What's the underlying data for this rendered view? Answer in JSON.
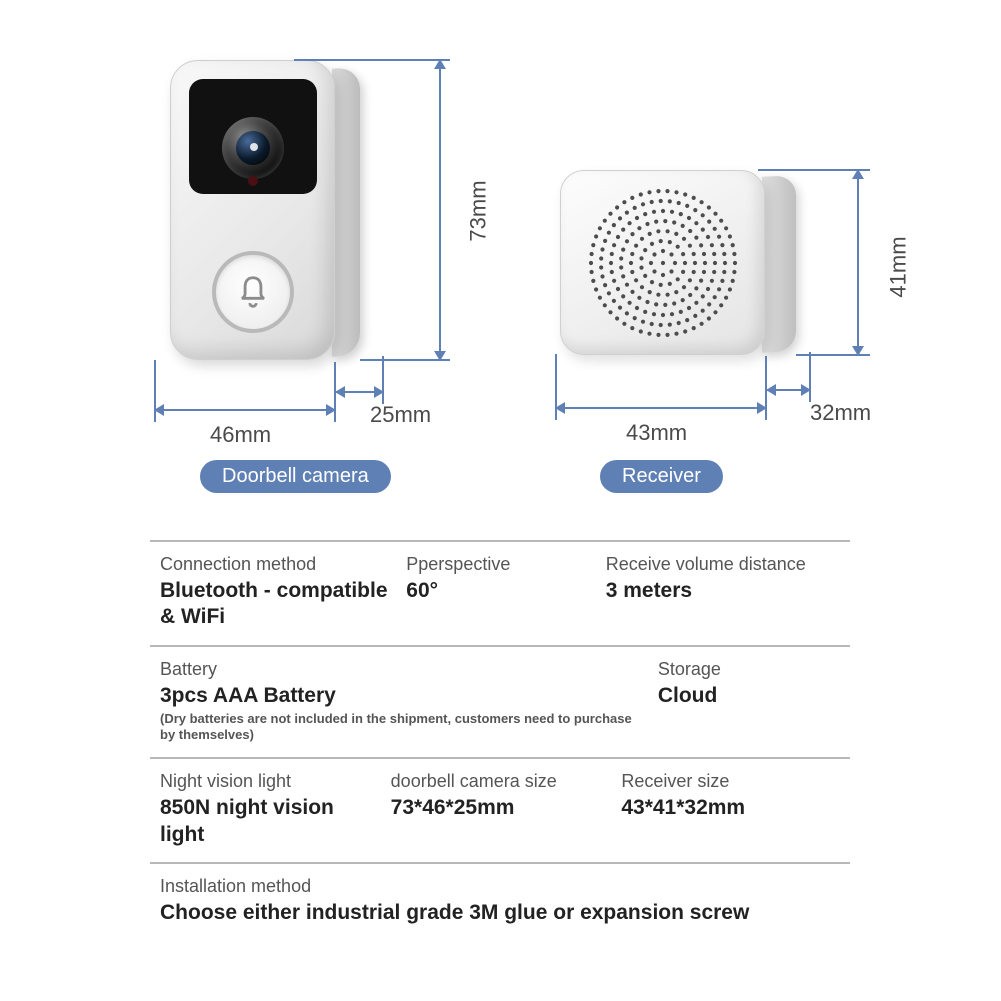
{
  "products": {
    "doorbell": {
      "label": "Doorbell camera",
      "dimensions": {
        "width": "46mm",
        "depth": "25mm",
        "height": "73mm"
      }
    },
    "receiver": {
      "label": "Receiver",
      "dimensions": {
        "width": "43mm",
        "depth": "32mm",
        "height": "41mm"
      }
    }
  },
  "colors": {
    "accent": "#5f80b5",
    "divider": "#b8b8b8",
    "text": "#333333",
    "background": "#ffffff"
  },
  "specs": {
    "row1": {
      "connection": {
        "label": "Connection method",
        "value": "Bluetooth - compatible & WiFi"
      },
      "perspective": {
        "label": "Pperspective",
        "value": "60°"
      },
      "volume_distance": {
        "label": "Receive volume distance",
        "value": "3 meters"
      }
    },
    "row2": {
      "battery": {
        "label": "Battery",
        "value": "3pcs AAA Battery",
        "note": "(Dry batteries are not included in the shipment, customers need to purchase by themselves)"
      },
      "storage": {
        "label": "Storage",
        "value": "Cloud"
      }
    },
    "row3": {
      "night_vision": {
        "label": "Night vision light",
        "value": "850N night vision light"
      },
      "doorbell_size": {
        "label": "doorbell camera size",
        "value": "73*46*25mm"
      },
      "receiver_size": {
        "label": "Receiver size",
        "value": "43*41*32mm"
      }
    },
    "row4": {
      "installation": {
        "label": "Installation method",
        "value": "Choose either industrial grade 3M glue or expansion screw"
      }
    }
  }
}
